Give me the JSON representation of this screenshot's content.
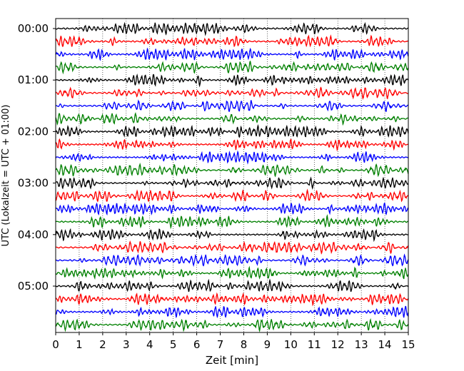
{
  "chart_data": {
    "type": "line",
    "xlabel": "Zeit  [min]",
    "ylabel": "UTC (Lokalzeit = UTC + 01:00)",
    "xlim": [
      0,
      15
    ],
    "x_ticks": [
      "0",
      "1",
      "2",
      "3",
      "4",
      "5",
      "6",
      "7",
      "8",
      "9",
      "10",
      "11",
      "12",
      "13",
      "14",
      "15"
    ],
    "y_ticks": [
      "00:00",
      "01:00",
      "02:00",
      "03:00",
      "04:00",
      "05:00"
    ],
    "rows_per_hour": 4,
    "total_rows": 24,
    "trace_colors": [
      "#000000",
      "#ff0000",
      "#0000ff",
      "#008000"
    ],
    "grid": "vertical dotted lines at each minute",
    "legend": "none"
  }
}
